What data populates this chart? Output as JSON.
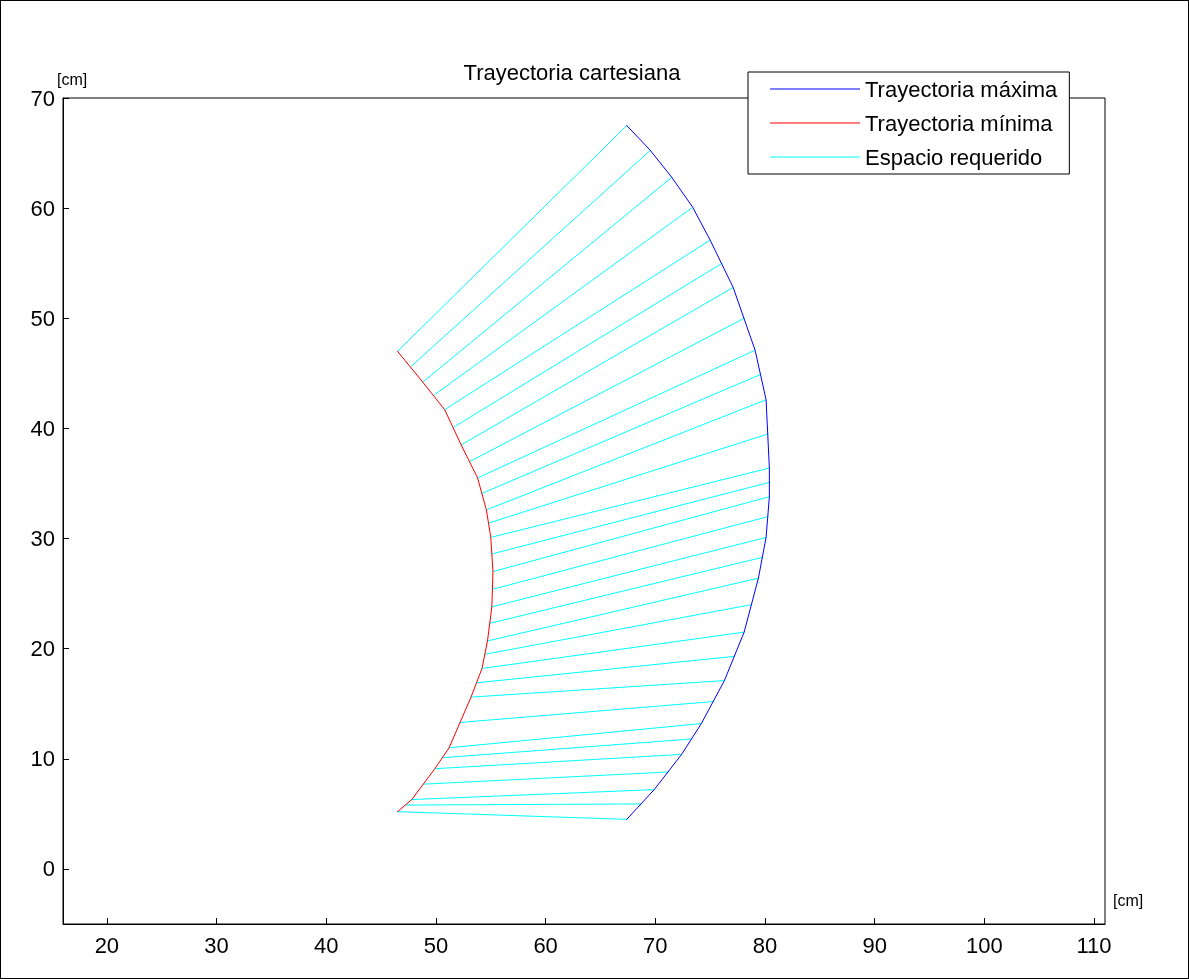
{
  "chart_data": {
    "type": "line",
    "title": "Trayectoria cartesiana",
    "xlabel": "[cm]",
    "ylabel": "[cm]",
    "xlim": [
      16,
      111
    ],
    "ylim": [
      -5,
      70
    ],
    "xticks": [
      20,
      30,
      40,
      50,
      60,
      70,
      80,
      90,
      100,
      110
    ],
    "yticks": [
      0,
      10,
      20,
      30,
      40,
      50,
      60,
      70
    ],
    "legend": "top right",
    "series": [
      {
        "name": "Trayectoria máxima",
        "color": "#0000ff",
        "x": [
          67.4,
          69.9,
          72.4,
          74.2,
          76.3,
          78.1,
          79.4,
          80.1,
          80.4,
          80.4,
          80.1,
          79.1,
          77.1,
          75.0,
          73.4,
          71.5,
          69.5,
          67.4
        ],
        "values": [
          4.5,
          7.2,
          10.4,
          13.2,
          17.1,
          21.5,
          26.4,
          30.1,
          33.8,
          36.4,
          42.6,
          47.1,
          52.8,
          57.1,
          60.1,
          62.8,
          65.3,
          67.5
        ]
      },
      {
        "name": "Trayectoria mínima",
        "color": "#ff0000",
        "x": [
          46.5,
          47.8,
          49.9,
          51.2,
          53.2,
          54.2,
          54.7,
          55.1,
          55.2,
          55.0,
          54.6,
          53.8,
          52.3,
          50.8,
          48.8,
          46.5
        ],
        "values": [
          5.2,
          6.3,
          9.1,
          11.0,
          15.6,
          18.2,
          20.7,
          23.8,
          27.0,
          30.1,
          32.6,
          35.5,
          38.5,
          41.7,
          44.2,
          47.0
        ]
      },
      {
        "name": "Espacio requerido",
        "color": "#00ffff",
        "x": [
          46.5,
          67.4
        ],
        "values": [
          5.2,
          4.5
        ]
      },
      {
        "color": "#00ffff",
        "x": [
          47.2,
          68.7
        ],
        "values": [
          5.8,
          5.9
        ]
      },
      {
        "color": "#00ffff",
        "x": [
          47.8,
          69.9
        ],
        "values": [
          6.3,
          7.2
        ]
      },
      {
        "color": "#00ffff",
        "x": [
          48.9,
          71.2
        ],
        "values": [
          7.7,
          8.8
        ]
      },
      {
        "color": "#00ffff",
        "x": [
          49.9,
          72.4
        ],
        "values": [
          9.1,
          10.4
        ]
      },
      {
        "color": "#00ffff",
        "x": [
          50.6,
          73.3
        ],
        "values": [
          10.1,
          11.8
        ]
      },
      {
        "color": "#00ffff",
        "x": [
          51.2,
          74.2
        ],
        "values": [
          11.0,
          13.2
        ]
      },
      {
        "color": "#00ffff",
        "x": [
          52.2,
          75.3
        ],
        "values": [
          13.3,
          15.2
        ]
      },
      {
        "color": "#00ffff",
        "x": [
          53.2,
          76.3
        ],
        "values": [
          15.6,
          17.1
        ]
      },
      {
        "color": "#00ffff",
        "x": [
          53.7,
          77.2
        ],
        "values": [
          16.9,
          19.3
        ]
      },
      {
        "color": "#00ffff",
        "x": [
          54.2,
          78.1
        ],
        "values": [
          18.2,
          21.5
        ]
      },
      {
        "color": "#00ffff",
        "x": [
          54.5,
          78.8
        ],
        "values": [
          19.5,
          24.0
        ]
      },
      {
        "color": "#00ffff",
        "x": [
          54.7,
          79.4
        ],
        "values": [
          20.7,
          26.4
        ]
      },
      {
        "color": "#00ffff",
        "x": [
          54.9,
          79.8
        ],
        "values": [
          22.3,
          28.3
        ]
      },
      {
        "color": "#00ffff",
        "x": [
          55.1,
          80.1
        ],
        "values": [
          23.8,
          30.1
        ]
      },
      {
        "color": "#00ffff",
        "x": [
          55.2,
          80.3
        ],
        "values": [
          25.4,
          32.0
        ]
      },
      {
        "color": "#00ffff",
        "x": [
          55.2,
          80.4
        ],
        "values": [
          27.0,
          33.8
        ]
      },
      {
        "color": "#00ffff",
        "x": [
          55.1,
          80.4
        ],
        "values": [
          28.6,
          35.1
        ]
      },
      {
        "color": "#00ffff",
        "x": [
          55.0,
          80.4
        ],
        "values": [
          30.1,
          36.4
        ]
      },
      {
        "color": "#00ffff",
        "x": [
          54.8,
          80.3
        ],
        "values": [
          31.4,
          39.5
        ]
      },
      {
        "color": "#00ffff",
        "x": [
          54.6,
          80.1
        ],
        "values": [
          32.6,
          42.6
        ]
      },
      {
        "color": "#00ffff",
        "x": [
          54.2,
          79.6
        ],
        "values": [
          34.1,
          44.9
        ]
      },
      {
        "color": "#00ffff",
        "x": [
          53.8,
          79.1
        ],
        "values": [
          35.5,
          47.1
        ]
      },
      {
        "color": "#00ffff",
        "x": [
          53.1,
          78.1
        ],
        "values": [
          37.0,
          50.0
        ]
      },
      {
        "color": "#00ffff",
        "x": [
          52.3,
          77.1
        ],
        "values": [
          38.5,
          52.8
        ]
      },
      {
        "color": "#00ffff",
        "x": [
          51.6,
          76.1
        ],
        "values": [
          40.1,
          55.0
        ]
      },
      {
        "color": "#00ffff",
        "x": [
          50.8,
          75.0
        ],
        "values": [
          41.7,
          57.1
        ]
      },
      {
        "color": "#00ffff",
        "x": [
          49.8,
          73.3
        ],
        "values": [
          43.0,
          60.0
        ]
      },
      {
        "color": "#00ffff",
        "x": [
          48.8,
          71.5
        ],
        "values": [
          44.2,
          62.8
        ]
      },
      {
        "color": "#00ffff",
        "x": [
          47.7,
          69.5
        ],
        "values": [
          45.6,
          65.2
        ]
      },
      {
        "color": "#00ffff",
        "x": [
          46.5,
          67.4
        ],
        "values": [
          47.0,
          67.5
        ]
      }
    ]
  }
}
